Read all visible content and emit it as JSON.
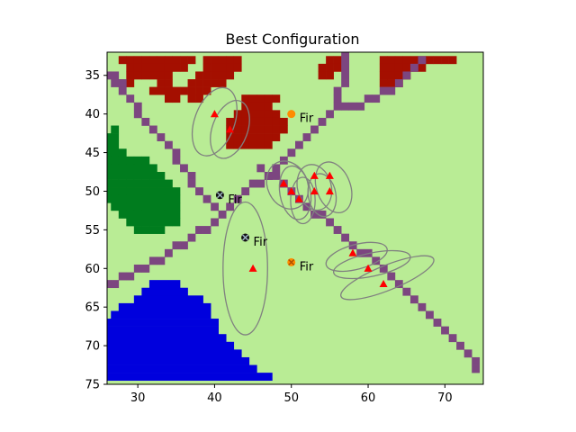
{
  "chart_data": {
    "type": "scatter",
    "title": "Best Configuration",
    "xlabel": "",
    "ylabel": "",
    "xlim": [
      26,
      75
    ],
    "ylim": [
      75,
      32
    ],
    "y_inverted": true,
    "grid": false,
    "x_ticks": [
      30,
      40,
      50,
      60,
      70
    ],
    "y_ticks": [
      35,
      40,
      45,
      50,
      55,
      60,
      65,
      70,
      75
    ],
    "colors": {
      "background_grass": "#b9ec95",
      "path": "#7c4680",
      "forest_red": "#a40f00",
      "forest_green": "#007c1e",
      "water": "#0000dd",
      "marker_red": "#ff0000",
      "ellipse": "#808080",
      "fir_orange": "#ff8c00",
      "fir_black": "#111111"
    },
    "red_forest_cells": [
      [
        28,
        33
      ],
      [
        29,
        33
      ],
      [
        30,
        33
      ],
      [
        31,
        33
      ],
      [
        32,
        33
      ],
      [
        33,
        33
      ],
      [
        34,
        33
      ],
      [
        35,
        33
      ],
      [
        36,
        33
      ],
      [
        37,
        33
      ],
      [
        39,
        33
      ],
      [
        40,
        33
      ],
      [
        41,
        33
      ],
      [
        42,
        33
      ],
      [
        43,
        33
      ],
      [
        55,
        33
      ],
      [
        56,
        33
      ],
      [
        62,
        33
      ],
      [
        63,
        33
      ],
      [
        64,
        33
      ],
      [
        65,
        33
      ],
      [
        66,
        33
      ],
      [
        67,
        33
      ],
      [
        68,
        33
      ],
      [
        69,
        33
      ],
      [
        70,
        33
      ],
      [
        71,
        33
      ],
      [
        29,
        34
      ],
      [
        30,
        34
      ],
      [
        31,
        34
      ],
      [
        32,
        34
      ],
      [
        33,
        34
      ],
      [
        34,
        34
      ],
      [
        35,
        34
      ],
      [
        36,
        34
      ],
      [
        39,
        34
      ],
      [
        40,
        34
      ],
      [
        41,
        34
      ],
      [
        42,
        34
      ],
      [
        43,
        34
      ],
      [
        54,
        34
      ],
      [
        55,
        34
      ],
      [
        56,
        34
      ],
      [
        62,
        34
      ],
      [
        63,
        34
      ],
      [
        64,
        34
      ],
      [
        65,
        34
      ],
      [
        66,
        34
      ],
      [
        67,
        34
      ],
      [
        29,
        35
      ],
      [
        30,
        35
      ],
      [
        31,
        35
      ],
      [
        32,
        35
      ],
      [
        33,
        35
      ],
      [
        34,
        35
      ],
      [
        38,
        35
      ],
      [
        39,
        35
      ],
      [
        40,
        35
      ],
      [
        41,
        35
      ],
      [
        42,
        35
      ],
      [
        54,
        35
      ],
      [
        55,
        35
      ],
      [
        62,
        35
      ],
      [
        63,
        35
      ],
      [
        64,
        35
      ],
      [
        65,
        35
      ],
      [
        28,
        36
      ],
      [
        29,
        36
      ],
      [
        33,
        36
      ],
      [
        34,
        36
      ],
      [
        37,
        36
      ],
      [
        38,
        36
      ],
      [
        39,
        36
      ],
      [
        40,
        36
      ],
      [
        41,
        36
      ],
      [
        62,
        36
      ],
      [
        63,
        36
      ],
      [
        64,
        36
      ],
      [
        32,
        37
      ],
      [
        33,
        37
      ],
      [
        34,
        37
      ],
      [
        35,
        37
      ],
      [
        36,
        37
      ],
      [
        37,
        37
      ],
      [
        38,
        37
      ],
      [
        39,
        37
      ],
      [
        34,
        38
      ],
      [
        35,
        38
      ],
      [
        37,
        38
      ],
      [
        38,
        38
      ],
      [
        44,
        38
      ],
      [
        45,
        38
      ],
      [
        46,
        38
      ],
      [
        47,
        38
      ],
      [
        48,
        38
      ],
      [
        44,
        39
      ],
      [
        45,
        39
      ],
      [
        46,
        39
      ],
      [
        47,
        39
      ],
      [
        43,
        40
      ],
      [
        44,
        40
      ],
      [
        45,
        40
      ],
      [
        46,
        40
      ],
      [
        47,
        40
      ],
      [
        48,
        40
      ],
      [
        42,
        41
      ],
      [
        43,
        41
      ],
      [
        44,
        41
      ],
      [
        45,
        41
      ],
      [
        46,
        41
      ],
      [
        47,
        41
      ],
      [
        48,
        41
      ],
      [
        49,
        41
      ],
      [
        42,
        42
      ],
      [
        43,
        42
      ],
      [
        44,
        42
      ],
      [
        45,
        42
      ],
      [
        46,
        42
      ],
      [
        47,
        42
      ],
      [
        48,
        42
      ],
      [
        49,
        42
      ],
      [
        42,
        43
      ],
      [
        43,
        43
      ],
      [
        44,
        43
      ],
      [
        45,
        43
      ],
      [
        46,
        43
      ],
      [
        47,
        43
      ],
      [
        48,
        43
      ],
      [
        42,
        44
      ],
      [
        43,
        44
      ],
      [
        44,
        44
      ],
      [
        45,
        44
      ],
      [
        46,
        44
      ],
      [
        47,
        44
      ]
    ],
    "green_forest_cells": [
      [
        27,
        42
      ],
      [
        26,
        43
      ],
      [
        27,
        43
      ],
      [
        26,
        44
      ],
      [
        27,
        44
      ],
      [
        26,
        45
      ],
      [
        27,
        45
      ],
      [
        28,
        45
      ],
      [
        26,
        46
      ],
      [
        27,
        46
      ],
      [
        28,
        46
      ],
      [
        29,
        46
      ],
      [
        30,
        46
      ],
      [
        31,
        46
      ],
      [
        26,
        47
      ],
      [
        27,
        47
      ],
      [
        28,
        47
      ],
      [
        29,
        47
      ],
      [
        30,
        47
      ],
      [
        31,
        47
      ],
      [
        32,
        47
      ],
      [
        26,
        48
      ],
      [
        27,
        48
      ],
      [
        28,
        48
      ],
      [
        29,
        48
      ],
      [
        30,
        48
      ],
      [
        31,
        48
      ],
      [
        32,
        48
      ],
      [
        33,
        48
      ],
      [
        26,
        49
      ],
      [
        27,
        49
      ],
      [
        28,
        49
      ],
      [
        29,
        49
      ],
      [
        30,
        49
      ],
      [
        31,
        49
      ],
      [
        32,
        49
      ],
      [
        33,
        49
      ],
      [
        34,
        49
      ],
      [
        26,
        50
      ],
      [
        27,
        50
      ],
      [
        28,
        50
      ],
      [
        29,
        50
      ],
      [
        30,
        50
      ],
      [
        31,
        50
      ],
      [
        32,
        50
      ],
      [
        33,
        50
      ],
      [
        34,
        50
      ],
      [
        35,
        50
      ],
      [
        26,
        51
      ],
      [
        27,
        51
      ],
      [
        28,
        51
      ],
      [
        29,
        51
      ],
      [
        30,
        51
      ],
      [
        31,
        51
      ],
      [
        32,
        51
      ],
      [
        33,
        51
      ],
      [
        34,
        51
      ],
      [
        35,
        51
      ],
      [
        27,
        52
      ],
      [
        28,
        52
      ],
      [
        29,
        52
      ],
      [
        30,
        52
      ],
      [
        31,
        52
      ],
      [
        32,
        52
      ],
      [
        33,
        52
      ],
      [
        34,
        52
      ],
      [
        35,
        52
      ],
      [
        28,
        53
      ],
      [
        29,
        53
      ],
      [
        30,
        53
      ],
      [
        31,
        53
      ],
      [
        32,
        53
      ],
      [
        33,
        53
      ],
      [
        34,
        53
      ],
      [
        35,
        53
      ],
      [
        29,
        54
      ],
      [
        30,
        54
      ],
      [
        31,
        54
      ],
      [
        32,
        54
      ],
      [
        33,
        54
      ],
      [
        34,
        54
      ],
      [
        35,
        54
      ],
      [
        30,
        55
      ],
      [
        31,
        55
      ],
      [
        32,
        55
      ],
      [
        33,
        55
      ]
    ],
    "water_rows": [
      {
        "y": 62,
        "x_from": 32,
        "x_to": 35
      },
      {
        "y": 63,
        "x_from": 31,
        "x_to": 36
      },
      {
        "y": 64,
        "x_from": 30,
        "x_to": 38
      },
      {
        "y": 65,
        "x_from": 28,
        "x_to": 39
      },
      {
        "y": 66,
        "x_from": 27,
        "x_to": 39
      },
      {
        "y": 67,
        "x_from": 26,
        "x_to": 40
      },
      {
        "y": 68,
        "x_from": 26,
        "x_to": 40
      },
      {
        "y": 69,
        "x_from": 26,
        "x_to": 41
      },
      {
        "y": 70,
        "x_from": 26,
        "x_to": 42
      },
      {
        "y": 71,
        "x_from": 26,
        "x_to": 43
      },
      {
        "y": 72,
        "x_from": 26,
        "x_to": 44
      },
      {
        "y": 73,
        "x_from": 26,
        "x_to": 45
      },
      {
        "y": 74,
        "x_from": 26,
        "x_to": 47
      }
    ],
    "path_cells": [
      [
        26,
        35
      ],
      [
        27,
        35
      ],
      [
        27,
        36
      ],
      [
        28,
        36
      ],
      [
        28,
        37
      ],
      [
        29,
        38
      ],
      [
        30,
        39
      ],
      [
        30,
        40
      ],
      [
        31,
        41
      ],
      [
        32,
        42
      ],
      [
        33,
        43
      ],
      [
        34,
        44
      ],
      [
        35,
        45
      ],
      [
        35,
        46
      ],
      [
        36,
        47
      ],
      [
        37,
        48
      ],
      [
        37,
        49
      ],
      [
        38,
        50
      ],
      [
        39,
        51
      ],
      [
        40,
        52
      ],
      [
        57,
        32
      ],
      [
        57,
        33
      ],
      [
        57,
        34
      ],
      [
        57,
        35
      ],
      [
        57,
        36
      ],
      [
        56,
        37
      ],
      [
        56,
        38
      ],
      [
        56,
        39
      ],
      [
        55,
        40
      ],
      [
        54,
        41
      ],
      [
        53,
        42
      ],
      [
        52,
        43
      ],
      [
        51,
        44
      ],
      [
        50,
        45
      ],
      [
        49,
        46
      ],
      [
        48,
        47
      ],
      [
        47,
        48
      ],
      [
        46,
        49
      ],
      [
        45,
        49
      ],
      [
        44,
        50
      ],
      [
        43,
        51
      ],
      [
        42,
        52
      ],
      [
        41,
        53
      ],
      [
        40,
        54
      ],
      [
        39,
        55
      ],
      [
        38,
        55
      ],
      [
        37,
        56
      ],
      [
        36,
        57
      ],
      [
        35,
        57
      ],
      [
        34,
        58
      ],
      [
        33,
        59
      ],
      [
        32,
        59
      ],
      [
        31,
        60
      ],
      [
        30,
        60
      ],
      [
        29,
        61
      ],
      [
        28,
        61
      ],
      [
        27,
        62
      ],
      [
        26,
        62
      ],
      [
        67,
        33
      ],
      [
        66,
        34
      ],
      [
        65,
        35
      ],
      [
        64,
        36
      ],
      [
        63,
        37
      ],
      [
        62,
        37
      ],
      [
        61,
        38
      ],
      [
        60,
        38
      ],
      [
        59,
        39
      ],
      [
        58,
        39
      ],
      [
        57,
        39
      ],
      [
        46,
        47
      ],
      [
        47,
        48
      ],
      [
        48,
        48
      ],
      [
        49,
        49
      ],
      [
        50,
        50
      ],
      [
        51,
        51
      ],
      [
        52,
        52
      ],
      [
        53,
        53
      ],
      [
        54,
        53
      ],
      [
        55,
        54
      ],
      [
        56,
        55
      ],
      [
        57,
        56
      ],
      [
        58,
        57
      ],
      [
        59,
        58
      ],
      [
        60,
        58
      ],
      [
        61,
        59
      ],
      [
        62,
        60
      ],
      [
        63,
        61
      ],
      [
        64,
        62
      ],
      [
        65,
        63
      ],
      [
        66,
        64
      ],
      [
        67,
        65
      ],
      [
        68,
        66
      ],
      [
        69,
        67
      ],
      [
        70,
        68
      ],
      [
        71,
        69
      ],
      [
        72,
        70
      ],
      [
        73,
        71
      ],
      [
        74,
        72
      ],
      [
        74,
        73
      ]
    ],
    "red_triangles": [
      {
        "x": 40,
        "y": 40
      },
      {
        "x": 42,
        "y": 42
      },
      {
        "x": 49,
        "y": 49
      },
      {
        "x": 50,
        "y": 50
      },
      {
        "x": 51,
        "y": 51
      },
      {
        "x": 53,
        "y": 48
      },
      {
        "x": 53,
        "y": 50
      },
      {
        "x": 55,
        "y": 48
      },
      {
        "x": 55,
        "y": 50
      },
      {
        "x": 45,
        "y": 60
      },
      {
        "x": 58,
        "y": 58
      },
      {
        "x": 60,
        "y": 60
      },
      {
        "x": 62,
        "y": 62
      }
    ],
    "ellipses": [
      {
        "cx": 40,
        "cy": 41,
        "rx": 2.6,
        "ry": 4.6,
        "rot": 20
      },
      {
        "cx": 42,
        "cy": 42,
        "rx": 2.3,
        "ry": 3.9,
        "rot": 20
      },
      {
        "cx": 49.5,
        "cy": 49.2,
        "rx": 2.6,
        "ry": 3.2,
        "rot": -25
      },
      {
        "cx": 50.5,
        "cy": 50.2,
        "rx": 2.0,
        "ry": 3.5,
        "rot": -10
      },
      {
        "cx": 51.5,
        "cy": 51.2,
        "rx": 1.6,
        "ry": 3.0,
        "rot": 0
      },
      {
        "cx": 53,
        "cy": 49.5,
        "rx": 2.2,
        "ry": 3.0,
        "rot": -15
      },
      {
        "cx": 54,
        "cy": 50.5,
        "rx": 1.8,
        "ry": 2.8,
        "rot": -10
      },
      {
        "cx": 55.5,
        "cy": 49.5,
        "rx": 2.2,
        "ry": 3.4,
        "rot": -20
      },
      {
        "cx": 44,
        "cy": 60,
        "rx": 2.9,
        "ry": 8.6,
        "rot": 0
      },
      {
        "cx": 58.5,
        "cy": 58.5,
        "rx": 4.1,
        "ry": 1.6,
        "rot": -15
      },
      {
        "cx": 60.5,
        "cy": 59.5,
        "rx": 5.1,
        "ry": 1.5,
        "rot": -12
      },
      {
        "cx": 62.5,
        "cy": 61.2,
        "rx": 6.5,
        "ry": 1.6,
        "rot": -22
      }
    ],
    "fir_markers": [
      {
        "x": 50,
        "y": 40,
        "label": "Fir",
        "style": "orange-dot"
      },
      {
        "x": 40.7,
        "y": 50.5,
        "label": "Fir",
        "style": "black-x"
      },
      {
        "x": 44,
        "y": 56,
        "label": "Fir",
        "style": "black-x"
      },
      {
        "x": 50,
        "y": 59.2,
        "label": "Fir",
        "style": "orange-x"
      }
    ]
  }
}
